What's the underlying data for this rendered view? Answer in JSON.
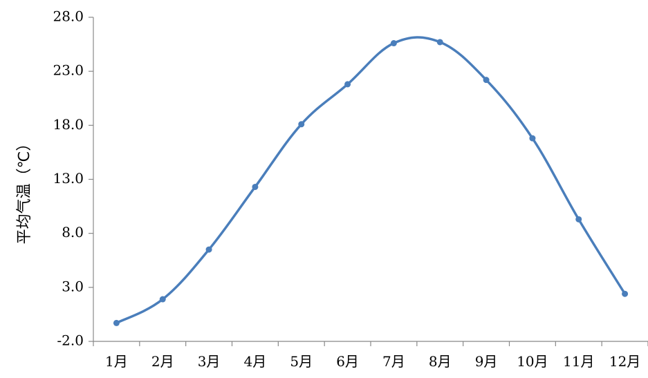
{
  "chart_data": {
    "type": "line",
    "title": "",
    "xlabel": "",
    "ylabel": "平均气温（℃）",
    "categories": [
      "1月",
      "2月",
      "3月",
      "4月",
      "5月",
      "6月",
      "7月",
      "8月",
      "9月",
      "10月",
      "11月",
      "12月"
    ],
    "series": [
      {
        "values": [
          -0.3,
          1.9,
          6.5,
          12.3,
          18.1,
          21.8,
          25.6,
          25.7,
          22.2,
          16.8,
          9.3,
          2.4
        ]
      }
    ],
    "ylim": [
      -2.0,
      28.0
    ],
    "yticks": [
      "-2.0",
      "3.0",
      "8.0",
      "13.0",
      "18.0",
      "23.0",
      "28.0"
    ],
    "grid": false,
    "legend": "none",
    "line_color": "#4a7ebb",
    "axis_color": "#888888"
  }
}
